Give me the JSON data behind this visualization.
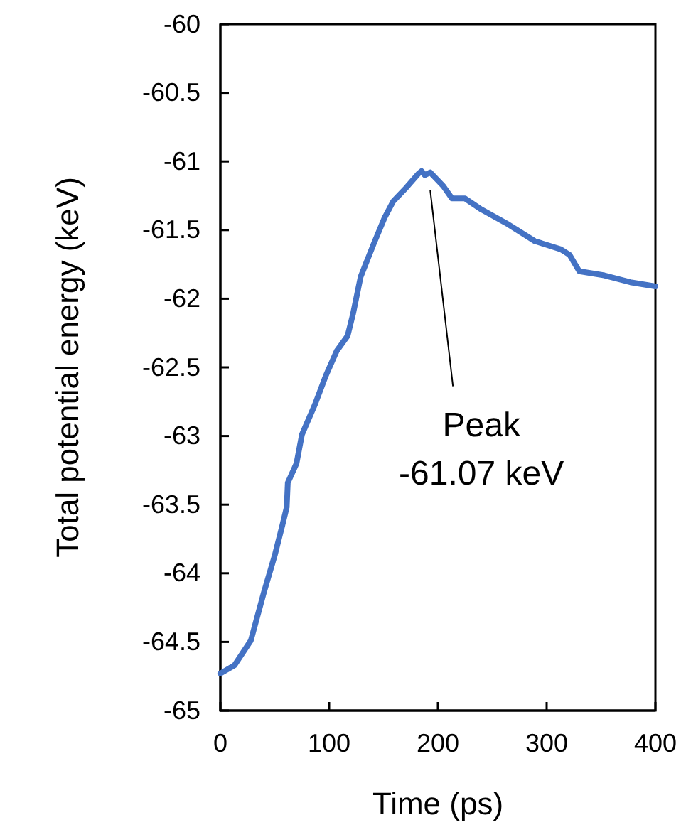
{
  "chart_data": {
    "type": "line",
    "xlabel": "Time (ps)",
    "ylabel": "Total potential energy (keV)",
    "xlim": [
      0,
      400
    ],
    "xticks": [
      0,
      100,
      200,
      300,
      400
    ],
    "ylim": [
      -65,
      -60
    ],
    "yticks": [
      -65,
      -64.5,
      -64,
      -63.5,
      -63,
      -62.5,
      -62,
      -61.5,
      -61,
      -60.5,
      -60
    ],
    "grid": false,
    "marker": "none",
    "line_style": "solid",
    "series": [
      {
        "color": "#4472c4",
        "x": [
          0,
          13,
          28,
          40,
          50,
          57,
          61,
          62,
          70,
          75,
          87,
          97,
          107,
          117,
          122,
          129,
          141,
          151,
          159,
          171,
          182,
          185,
          188,
          193,
          205,
          213,
          225,
          240,
          265,
          289,
          313,
          321,
          330,
          353,
          377,
          400
        ],
        "values": [
          -64.73,
          -64.67,
          -64.49,
          -64.14,
          -63.87,
          -63.65,
          -63.52,
          -63.34,
          -63.2,
          -62.99,
          -62.77,
          -62.56,
          -62.38,
          -62.27,
          -62.11,
          -61.84,
          -61.6,
          -61.41,
          -61.29,
          -61.19,
          -61.09,
          -61.07,
          -61.1,
          -61.08,
          -61.18,
          -61.27,
          -61.27,
          -61.35,
          -61.46,
          -61.58,
          -61.64,
          -61.68,
          -61.8,
          -61.83,
          -61.88,
          -61.91
        ]
      }
    ],
    "annotations": [
      "Peak\n-61.07 keV"
    ]
  }
}
